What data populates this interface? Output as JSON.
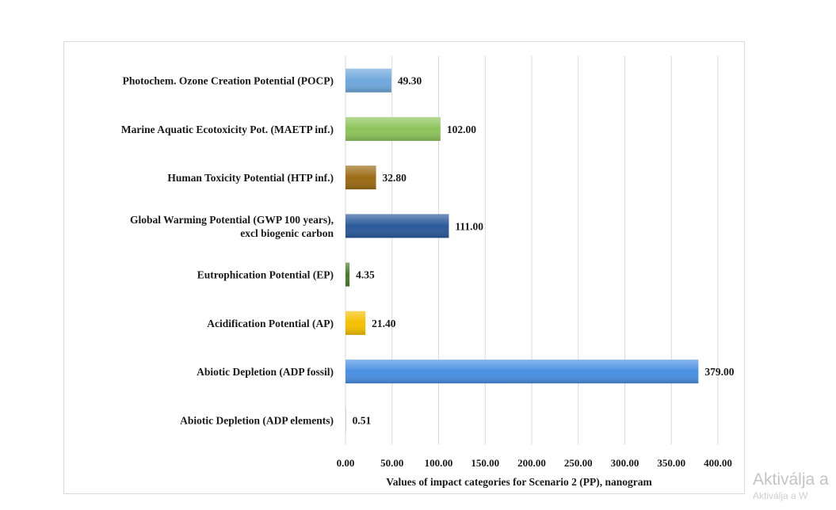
{
  "chart_data": {
    "type": "bar",
    "orientation": "horizontal",
    "categories": [
      [
        "Photochem. Ozone Creation Potential (POCP)"
      ],
      [
        "Marine Aquatic Ecotoxicity Pot. (MAETP inf.)"
      ],
      [
        "Human Toxicity Potential (HTP inf.)"
      ],
      [
        "Global Warming Potential (GWP 100 years),",
        "excl biogenic carbon"
      ],
      [
        "Eutrophication Potential (EP)"
      ],
      [
        "Acidification Potential (AP)"
      ],
      [
        "Abiotic Depletion (ADP fossil)"
      ],
      [
        "Abiotic Depletion (ADP elements)"
      ]
    ],
    "values": [
      49.3,
      102.0,
      32.8,
      111.0,
      4.35,
      21.4,
      379.0,
      0.51
    ],
    "value_labels": [
      "49.30",
      "102.00",
      "32.80",
      "111.00",
      "4.35",
      "21.40",
      "379.00",
      "0.51"
    ],
    "bar_colors": [
      "#6fa8dc",
      "#8dc45a",
      "#9c6b14",
      "#2a5a9a",
      "#4a7a2a",
      "#f5c000",
      "#4a90e2",
      "#9fb7d6"
    ],
    "xlabel": "Values of impact categories for Scenario 2 (PP), nanogram",
    "xlim": [
      0,
      400
    ],
    "x_ticks": [
      0,
      50,
      100,
      150,
      200,
      250,
      300,
      350,
      400
    ],
    "x_tick_labels": [
      "0.00",
      "50.00",
      "100.00",
      "150.00",
      "200.00",
      "250.00",
      "300.00",
      "350.00",
      "400.00"
    ],
    "grid": "vertical"
  },
  "watermark": {
    "line1": "Aktiválja a",
    "line2": "Aktiválja a W"
  }
}
